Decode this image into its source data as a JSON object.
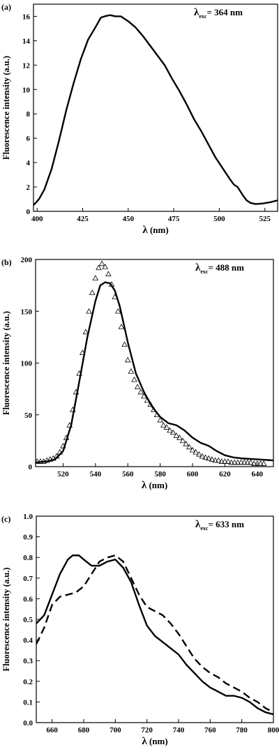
{
  "chart_data": [
    {
      "type": "line",
      "panel_label": "(a)",
      "annotation": {
        "symbol": "λ",
        "sub": "exc",
        "text": "= 364 nm"
      },
      "ylabel": "Fluorescence intensity (a.u.)",
      "xlabel": {
        "symbol": "λ",
        "text": " (nm)"
      },
      "xlim": [
        398,
        532
      ],
      "ylim": [
        0,
        17
      ],
      "xticks": [
        400,
        425,
        450,
        475,
        500,
        525
      ],
      "yticks": [
        0,
        2,
        4,
        6,
        8,
        10,
        12,
        14,
        16
      ],
      "series": [
        {
          "style": "solid",
          "x": [
            398,
            401,
            404,
            408,
            412,
            416,
            420,
            424,
            428,
            432,
            435,
            437,
            440,
            443,
            446,
            450,
            454,
            458,
            462,
            466,
            470,
            474,
            478,
            482,
            486,
            490,
            494,
            498,
            502,
            506,
            508,
            510,
            513,
            515,
            517,
            520,
            524,
            528,
            532
          ],
          "y": [
            0.5,
            1.0,
            1.8,
            3.5,
            5.8,
            8.3,
            10.5,
            12.5,
            14.1,
            15.1,
            15.9,
            16.0,
            16.1,
            16.0,
            16.0,
            15.6,
            15.1,
            14.4,
            13.6,
            12.8,
            12.0,
            10.9,
            9.9,
            8.8,
            7.6,
            6.6,
            5.5,
            4.4,
            3.5,
            2.6,
            2.2,
            2.0,
            1.3,
            0.9,
            0.7,
            0.6,
            0.65,
            0.75,
            0.9
          ]
        }
      ]
    },
    {
      "type": "line",
      "panel_label": "(b)",
      "annotation": {
        "symbol": "λ",
        "sub": "exc",
        "text": "= 488 nm"
      },
      "ylabel": "Fluorescence intensity (a.u.)",
      "xlabel": {
        "symbol": "λ",
        "text": " (nm)"
      },
      "xlim": [
        503,
        650
      ],
      "ylim": [
        0,
        200
      ],
      "xticks": [
        520,
        540,
        560,
        580,
        600,
        620,
        640
      ],
      "yticks": [
        0,
        50,
        100,
        150,
        200
      ],
      "series": [
        {
          "style": "solid",
          "x": [
            503,
            510,
            515,
            520,
            525,
            530,
            535,
            540,
            543,
            546,
            549,
            552,
            555,
            560,
            565,
            570,
            575,
            580,
            585,
            590,
            595,
            600,
            605,
            610,
            615,
            620,
            625,
            630,
            640,
            650
          ],
          "y": [
            4,
            5,
            7,
            15,
            40,
            82,
            125,
            160,
            175,
            178,
            177,
            170,
            155,
            120,
            90,
            72,
            58,
            48,
            42,
            40,
            35,
            28,
            23,
            20,
            15,
            11,
            9,
            8,
            7,
            6
          ]
        },
        {
          "style": "triangles",
          "x": [
            504,
            506,
            508,
            510,
            512,
            514,
            516,
            518,
            520,
            522,
            524,
            526,
            528,
            530,
            532,
            534,
            536,
            538,
            540,
            542,
            544,
            546,
            548,
            550,
            552,
            554,
            556,
            558,
            560,
            562,
            564,
            566,
            568,
            570,
            572,
            574,
            576,
            578,
            580,
            582,
            584,
            586,
            588,
            590,
            592,
            594,
            596,
            598,
            600,
            602,
            604,
            606,
            608,
            610,
            612,
            614,
            616,
            618,
            620,
            622,
            624,
            626,
            628,
            630,
            632,
            634,
            636,
            638,
            640,
            642,
            644
          ],
          "y": [
            5,
            5,
            5,
            6,
            7,
            8,
            10,
            14,
            20,
            28,
            40,
            55,
            72,
            90,
            110,
            130,
            150,
            168,
            182,
            192,
            196,
            193,
            186,
            176,
            164,
            150,
            135,
            118,
            103,
            92,
            84,
            77,
            72,
            68,
            64,
            60,
            55,
            50,
            45,
            40,
            38,
            35,
            33,
            30,
            28,
            25,
            22,
            19,
            16,
            14,
            12,
            10,
            9,
            8,
            7,
            6,
            6,
            5,
            5,
            5,
            4,
            4,
            4,
            4,
            4,
            4,
            4,
            3,
            3,
            3,
            3
          ]
        }
      ]
    },
    {
      "type": "line",
      "panel_label": "(c)",
      "annotation": {
        "symbol": "λ",
        "sub": "exc",
        "text": "= 633 nm"
      },
      "ylabel": "Fluorescence intensity (a.u.)",
      "xlabel": {
        "symbol": "λ",
        "text": " (nm)"
      },
      "xlim": [
        650,
        800
      ],
      "ylim": [
        0,
        1.0
      ],
      "xticks": [
        660,
        680,
        700,
        720,
        740,
        760,
        780,
        800
      ],
      "yticks": [
        0.0,
        0.1,
        0.2,
        0.3,
        0.4,
        0.5,
        0.6,
        0.7,
        0.8,
        0.9,
        1.0
      ],
      "series": [
        {
          "style": "solid",
          "x": [
            650,
            655,
            660,
            665,
            670,
            673,
            677,
            680,
            685,
            690,
            695,
            700,
            705,
            710,
            715,
            720,
            725,
            730,
            735,
            740,
            745,
            750,
            755,
            760,
            765,
            770,
            775,
            780,
            785,
            790,
            795,
            800
          ],
          "y": [
            0.48,
            0.52,
            0.62,
            0.72,
            0.79,
            0.81,
            0.81,
            0.79,
            0.76,
            0.76,
            0.78,
            0.79,
            0.75,
            0.68,
            0.57,
            0.47,
            0.42,
            0.39,
            0.36,
            0.33,
            0.28,
            0.24,
            0.2,
            0.17,
            0.15,
            0.13,
            0.13,
            0.12,
            0.1,
            0.07,
            0.05,
            0.04
          ]
        },
        {
          "style": "dashed",
          "x": [
            650,
            655,
            660,
            665,
            670,
            675,
            680,
            685,
            690,
            695,
            700,
            705,
            710,
            715,
            720,
            725,
            730,
            735,
            740,
            745,
            750,
            755,
            760,
            765,
            770,
            775,
            780,
            785,
            790,
            795,
            800
          ],
          "y": [
            0.38,
            0.46,
            0.57,
            0.61,
            0.62,
            0.63,
            0.66,
            0.72,
            0.78,
            0.8,
            0.81,
            0.78,
            0.7,
            0.62,
            0.56,
            0.54,
            0.52,
            0.48,
            0.43,
            0.37,
            0.31,
            0.27,
            0.24,
            0.22,
            0.19,
            0.17,
            0.15,
            0.12,
            0.1,
            0.07,
            0.05
          ]
        }
      ]
    }
  ]
}
